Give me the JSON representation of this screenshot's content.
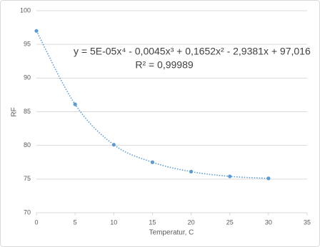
{
  "chart_data": {
    "type": "scatter",
    "x_label": "Temperatur, C",
    "y_label": "RF",
    "annotations": [
      "y = 5E-05x⁴ - 0,0045x³ + 0,1652x² - 2,9381x + 97,016",
      "R² = 0,99989"
    ],
    "series": [
      {
        "name": "RF",
        "color": "#5b9bd5",
        "x": [
          0,
          5,
          10,
          15,
          20,
          25,
          30
        ],
        "values": [
          97,
          86.1,
          80.1,
          77.5,
          76.1,
          75.4,
          75.1
        ]
      }
    ],
    "xlim": [
      0,
      35
    ],
    "xticks": [
      0,
      5,
      10,
      15,
      20,
      25,
      30,
      35
    ],
    "ylim": [
      70,
      100
    ],
    "yticks": [
      70,
      75,
      80,
      85,
      90,
      95,
      100
    ],
    "grid": true,
    "trendline": true
  }
}
